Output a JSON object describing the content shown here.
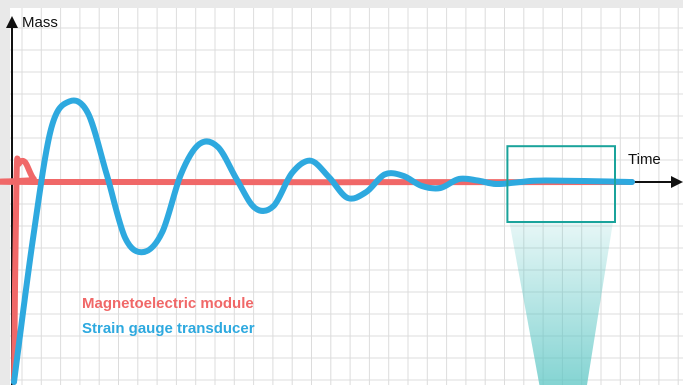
{
  "chart_data": {
    "type": "line",
    "title": "",
    "xlabel": "Time",
    "ylabel": "Mass",
    "xlim": [
      0,
      1
    ],
    "ylim": [
      -1,
      1
    ],
    "grid": true,
    "legend_position": "bottom-left",
    "series": [
      {
        "name": "Magnetoelectric module",
        "color": "#f06868",
        "points": [
          [
            0,
            -1
          ],
          [
            0.004,
            0.02
          ],
          [
            0.008,
            0.12
          ],
          [
            0.018,
            0.13
          ],
          [
            0.032,
            0.02
          ],
          [
            0.05,
            0.0
          ],
          [
            1.0,
            0.0
          ]
        ]
      },
      {
        "name": "Strain gauge transducer",
        "color": "#2ea9df",
        "points": [
          [
            0.0,
            -1.0
          ],
          [
            0.03,
            -0.3
          ],
          [
            0.06,
            0.35
          ],
          [
            0.09,
            0.53
          ],
          [
            0.12,
            0.45
          ],
          [
            0.15,
            0.05
          ],
          [
            0.18,
            -0.28
          ],
          [
            0.21,
            -0.35
          ],
          [
            0.24,
            -0.25
          ],
          [
            0.27,
            0.05
          ],
          [
            0.3,
            0.25
          ],
          [
            0.33,
            0.23
          ],
          [
            0.36,
            0.02
          ],
          [
            0.39,
            -0.13
          ],
          [
            0.42,
            -0.12
          ],
          [
            0.45,
            0.06
          ],
          [
            0.48,
            0.14
          ],
          [
            0.51,
            0.03
          ],
          [
            0.54,
            -0.08
          ],
          [
            0.57,
            -0.05
          ],
          [
            0.6,
            0.05
          ],
          [
            0.63,
            0.04
          ],
          [
            0.66,
            -0.02
          ],
          [
            0.69,
            -0.03
          ],
          [
            0.72,
            0.02
          ],
          [
            0.75,
            0.01
          ],
          [
            0.78,
            -0.01
          ],
          [
            0.82,
            0.0
          ],
          [
            0.86,
            0.01
          ],
          [
            1.0,
            0.0
          ]
        ]
      }
    ],
    "highlight_box": {
      "x": [
        0.8,
        1.0
      ],
      "y": [
        -0.15,
        0.15
      ],
      "color": "#1aa39b"
    }
  }
}
